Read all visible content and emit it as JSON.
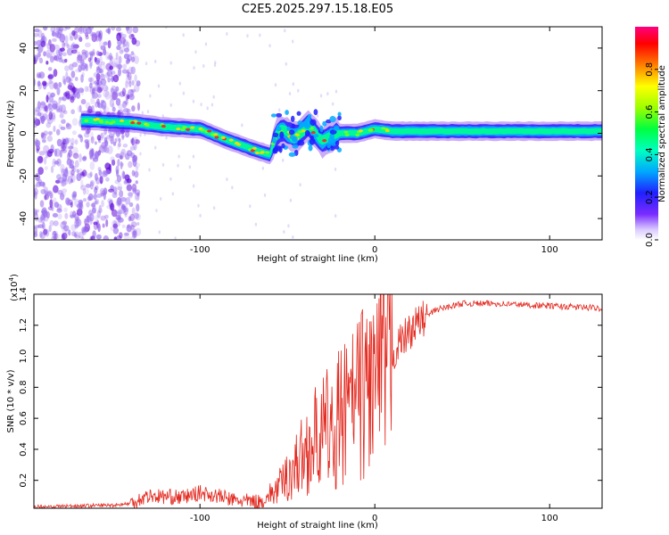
{
  "title": "C2E5.2025.297.15.18.E05",
  "chart_data": [
    {
      "type": "heatmap",
      "name": "spectrogram",
      "xlabel": "Height of straight line (km)",
      "ylabel": "Frequency (Hz)",
      "xlim": [
        -195,
        130
      ],
      "ylim": [
        -50,
        50
      ],
      "xticks": [
        -100,
        0,
        100
      ],
      "yticks": [
        -40,
        -20,
        0,
        20,
        40
      ],
      "colorbar": {
        "label": "Normalized spectral amplitude",
        "range": [
          0,
          1
        ],
        "ticks": [
          "0.0",
          "0.2",
          "0.4",
          "0.6",
          "0.8"
        ]
      },
      "ridge": [
        {
          "x": -165,
          "y": 6
        },
        {
          "x": -140,
          "y": 5
        },
        {
          "x": -120,
          "y": 3
        },
        {
          "x": -100,
          "y": 2
        },
        {
          "x": -88,
          "y": -2
        },
        {
          "x": -78,
          "y": -5
        },
        {
          "x": -68,
          "y": -8
        },
        {
          "x": -60,
          "y": -10
        },
        {
          "x": -55,
          "y": 2
        },
        {
          "x": -45,
          "y": -2
        },
        {
          "x": -38,
          "y": 4
        },
        {
          "x": -30,
          "y": -4
        },
        {
          "x": -22,
          "y": 0
        },
        {
          "x": -10,
          "y": 0
        },
        {
          "x": 0,
          "y": 2
        },
        {
          "x": 10,
          "y": 1
        },
        {
          "x": 30,
          "y": 1
        },
        {
          "x": 60,
          "y": 1
        },
        {
          "x": 100,
          "y": 1
        },
        {
          "x": 130,
          "y": 1
        }
      ]
    },
    {
      "type": "line",
      "name": "snr",
      "xlabel": "Height of straight line (km)",
      "ylabel": "SNR (10 * v/v)",
      "y_multiplier": "(x10",
      "y_multiplier_exp": "4",
      "y_multiplier_close": ")",
      "xlim": [
        -195,
        130
      ],
      "ylim": [
        0.02,
        1.4
      ],
      "xticks": [
        -100,
        0,
        100
      ],
      "yticks": [
        "0.2",
        "0.4",
        "0.6",
        "0.8",
        "1.0",
        "1.2",
        "1.4"
      ],
      "envelope": [
        {
          "x": -195,
          "y": 0.03
        },
        {
          "x": -150,
          "y": 0.04
        },
        {
          "x": -140,
          "y": 0.05
        },
        {
          "x": -130,
          "y": 0.1
        },
        {
          "x": -110,
          "y": 0.09
        },
        {
          "x": -100,
          "y": 0.12
        },
        {
          "x": -90,
          "y": 0.1
        },
        {
          "x": -80,
          "y": 0.07
        },
        {
          "x": -65,
          "y": 0.06
        },
        {
          "x": -55,
          "y": 0.15
        },
        {
          "x": -45,
          "y": 0.3
        },
        {
          "x": -35,
          "y": 0.45
        },
        {
          "x": -25,
          "y": 0.55
        },
        {
          "x": -15,
          "y": 0.65
        },
        {
          "x": -5,
          "y": 0.8
        },
        {
          "x": 5,
          "y": 0.9
        },
        {
          "x": 15,
          "y": 1.1
        },
        {
          "x": 25,
          "y": 1.22
        },
        {
          "x": 35,
          "y": 1.3
        },
        {
          "x": 50,
          "y": 1.34
        },
        {
          "x": 70,
          "y": 1.34
        },
        {
          "x": 90,
          "y": 1.33
        },
        {
          "x": 110,
          "y": 1.32
        },
        {
          "x": 130,
          "y": 1.31
        }
      ]
    }
  ]
}
